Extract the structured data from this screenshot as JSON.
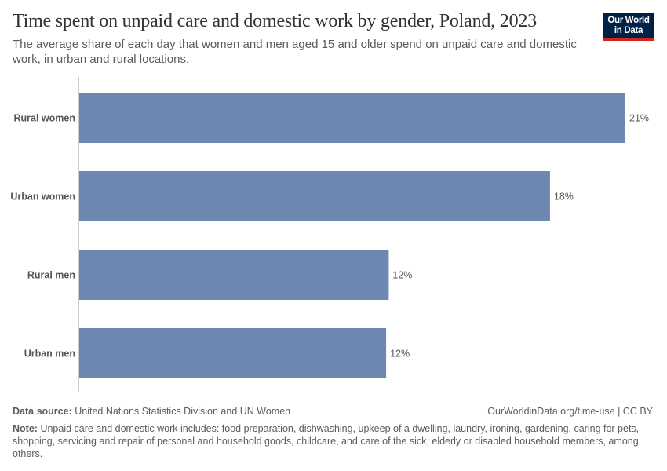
{
  "header": {
    "title": "Time spent on unpaid care and domestic work by gender, Poland, 2023",
    "subtitle": "The average share of each day that women and men aged 15 and older spend on unpaid care and domestic work, in urban and rural locations,",
    "logo": "Our World in Data"
  },
  "chart_data": {
    "type": "bar",
    "orientation": "horizontal",
    "categories": [
      "Rural women",
      "Urban women",
      "Rural men",
      "Urban men"
    ],
    "values": [
      21.0,
      18.1,
      11.9,
      11.8
    ],
    "data_labels": [
      "21%",
      "18%",
      "12%",
      "12%"
    ],
    "unit": "%",
    "xlim": [
      0,
      21
    ],
    "grid": false,
    "bar_color": "#6d87b0"
  },
  "footer": {
    "source_label": "Data source:",
    "source": "United Nations Statistics Division and UN Women",
    "url": "OurWorldinData.org/time-use | CC BY",
    "note_label": "Note:",
    "note": "Unpaid care and domestic work includes: food preparation, dishwashing, upkeep of a dwelling, laundry, ironing, gardening, caring for pets, shopping, servicing and repair of personal and household goods, childcare, and care of the sick, elderly or disabled household members, among others."
  }
}
